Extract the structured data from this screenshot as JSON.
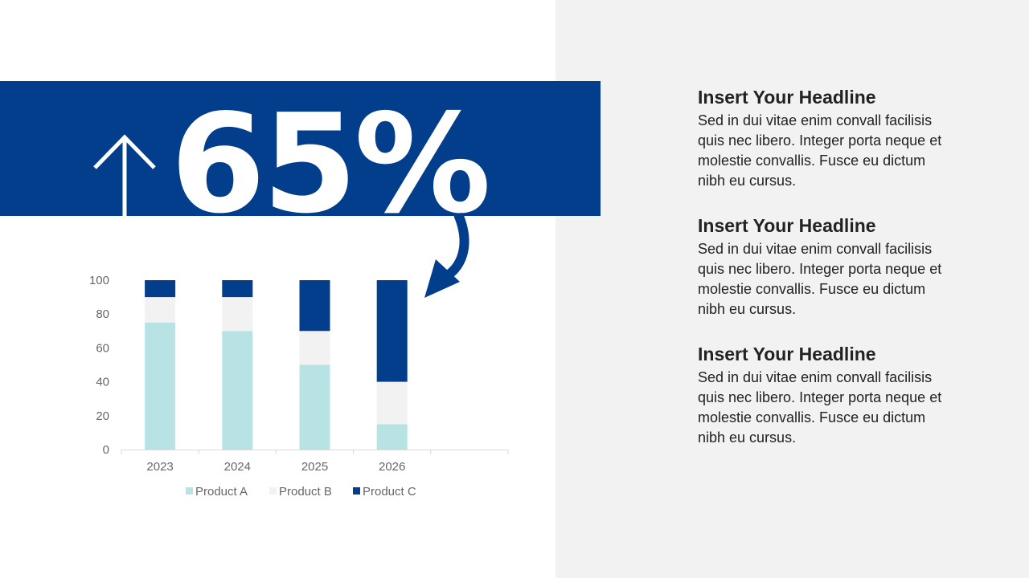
{
  "callout": {
    "value": "65%",
    "icon": "arrow-up-icon"
  },
  "colors": {
    "brand": "#033e8c",
    "panel": "#f2f2f2",
    "productA": "#b8e3e4",
    "productB": "#f2f2f2",
    "productC": "#033e8c"
  },
  "blocks": [
    {
      "headline": "Insert Your Headline",
      "body": "Sed in dui vitae enim convall facilisis quis nec libero. Integer porta neque et molestie convallis. Fusce eu dictum nibh eu cursus."
    },
    {
      "headline": "Insert Your Headline",
      "body": "Sed in dui vitae enim convall facilisis quis nec libero. Integer porta neque et molestie convallis. Fusce eu dictum nibh eu cursus."
    },
    {
      "headline": "Insert Your Headline",
      "body": "Sed in dui vitae enim convall facilisis quis nec libero. Integer porta neque et molestie convallis. Fusce eu dictum nibh eu cursus."
    }
  ],
  "chart_data": {
    "type": "bar",
    "stacked": true,
    "categories": [
      "2023",
      "2024",
      "2025",
      "2026",
      ""
    ],
    "series": [
      {
        "name": "Product A",
        "values": [
          75,
          70,
          50,
          15,
          null
        ],
        "color": "#b8e3e4"
      },
      {
        "name": "Product B",
        "values": [
          15,
          20,
          20,
          25,
          null
        ],
        "color": "#f2f2f2"
      },
      {
        "name": "Product C",
        "values": [
          10,
          10,
          30,
          60,
          null
        ],
        "color": "#033e8c"
      }
    ],
    "ylim": [
      0,
      100
    ],
    "yticks": [
      0,
      20,
      40,
      60,
      80,
      100
    ],
    "grid": false,
    "legend": "bottom"
  }
}
